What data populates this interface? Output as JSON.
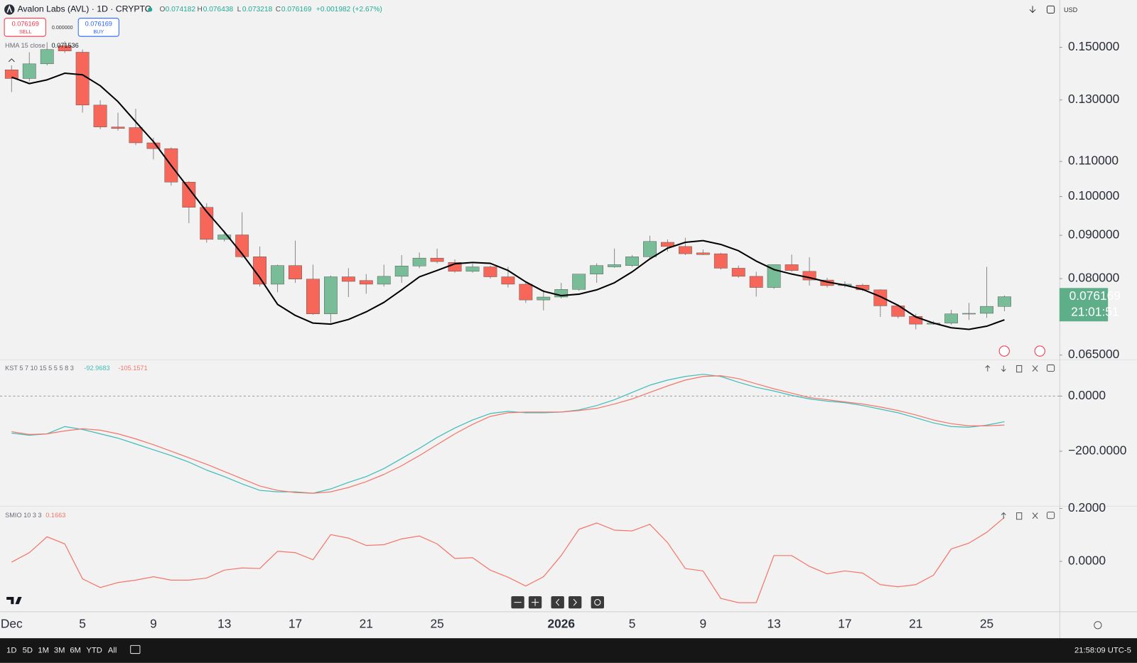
{
  "header": {
    "ohlc_letters": [
      "O",
      "H",
      "L",
      "C"
    ],
    "change": "+0.001982 (+2.67%)",
    "sell": "SELL",
    "buy": "BUY",
    "spread": "0.000000",
    "currency": "USD",
    "countdown": "21:01:51"
  },
  "toolbar": {
    "ranges": [
      "1D",
      "5D",
      "1M",
      "3M",
      "6M",
      "YTD",
      "All"
    ],
    "clock": "21:58:09 UTC-5"
  },
  "chart_data": [
    {
      "type": "candlestick",
      "title": "Avalon Labs (AVL) · 1D · CRYPTO",
      "log": true,
      "categories": [
        "Dec",
        null,
        null,
        null,
        "5",
        null,
        null,
        null,
        "9",
        null,
        null,
        null,
        "13",
        null,
        null,
        null,
        "17",
        null,
        null,
        null,
        "21",
        null,
        null,
        null,
        "25",
        null,
        null,
        null,
        null,
        null,
        null,
        "2026",
        null,
        null,
        null,
        "5",
        null,
        null,
        null,
        "9",
        null,
        null,
        null,
        "13",
        null,
        null,
        null,
        "17",
        null,
        null,
        null,
        "21",
        null,
        null,
        null,
        "25",
        null
      ],
      "open": [
        0.1411,
        0.1378,
        0.1434,
        0.1506,
        0.148,
        0.1282,
        0.1208,
        0.1206,
        0.1157,
        0.1139,
        0.104,
        0.0971,
        0.089,
        0.0901,
        0.0849,
        0.0788,
        0.0829,
        0.0799,
        0.0727,
        0.0804,
        0.0796,
        0.0788,
        0.0805,
        0.0828,
        0.0846,
        0.0836,
        0.0816,
        0.0826,
        0.0804,
        0.0788,
        0.0755,
        0.0761,
        0.0777,
        0.081,
        0.0826,
        0.0829,
        0.0849,
        0.0883,
        0.0873,
        0.0858,
        0.0856,
        0.0823,
        0.0805,
        0.0781,
        0.0831,
        0.0816,
        0.0797,
        0.0785,
        0.0786,
        0.0776,
        0.0743,
        0.0722,
        0.0707,
        0.0709,
        0.0727,
        0.0728,
        0.074182
      ],
      "high": [
        0.1428,
        0.148,
        0.1521,
        0.1524,
        0.1491,
        0.1299,
        0.1256,
        0.1269,
        0.1173,
        0.1143,
        0.1042,
        0.0982,
        0.0912,
        0.0958,
        0.0873,
        0.0831,
        0.0887,
        0.0831,
        0.0807,
        0.0823,
        0.081,
        0.0831,
        0.0853,
        0.0859,
        0.0868,
        0.0843,
        0.0833,
        0.0829,
        0.0826,
        0.0794,
        0.0776,
        0.0791,
        0.081,
        0.0834,
        0.0868,
        0.0853,
        0.0899,
        0.089,
        0.0894,
        0.0866,
        0.0858,
        0.0829,
        0.0815,
        0.0831,
        0.0854,
        0.0848,
        0.0802,
        0.0794,
        0.0789,
        0.0777,
        0.0746,
        0.0727,
        0.0713,
        0.0735,
        0.0749,
        0.0826,
        0.076438
      ],
      "low": [
        0.1328,
        0.1367,
        0.1428,
        0.1477,
        0.1256,
        0.1201,
        0.1196,
        0.115,
        0.1106,
        0.103,
        0.093,
        0.0882,
        0.0885,
        0.0846,
        0.0783,
        0.0771,
        0.0791,
        0.0725,
        0.0709,
        0.0761,
        0.0768,
        0.0783,
        0.0791,
        0.0823,
        0.0834,
        0.0813,
        0.0813,
        0.08,
        0.0781,
        0.0749,
        0.0734,
        0.0758,
        0.0774,
        0.0791,
        0.0824,
        0.0826,
        0.0844,
        0.0861,
        0.0853,
        0.0853,
        0.082,
        0.0802,
        0.0762,
        0.0778,
        0.0815,
        0.0785,
        0.0781,
        0.0781,
        0.0773,
        0.0721,
        0.0718,
        0.0697,
        0.0706,
        0.0706,
        0.0715,
        0.0719,
        0.073218
      ],
      "close": [
        0.1378,
        0.1434,
        0.1491,
        0.1485,
        0.1282,
        0.1208,
        0.1203,
        0.1157,
        0.1139,
        0.104,
        0.0971,
        0.089,
        0.0901,
        0.0849,
        0.0788,
        0.0829,
        0.0799,
        0.0727,
        0.0804,
        0.0794,
        0.0788,
        0.0805,
        0.0828,
        0.0846,
        0.0838,
        0.0816,
        0.0826,
        0.0804,
        0.0788,
        0.0755,
        0.0761,
        0.0777,
        0.081,
        0.0829,
        0.0831,
        0.0849,
        0.0885,
        0.0873,
        0.0856,
        0.0854,
        0.0823,
        0.0805,
        0.0781,
        0.0831,
        0.0818,
        0.0797,
        0.0785,
        0.0788,
        0.0776,
        0.0743,
        0.0722,
        0.0707,
        0.0709,
        0.0727,
        0.0728,
        0.0742,
        0.076169
      ],
      "up_color": "#79bc98",
      "down_color": "#f6675a",
      "series": [
        {
          "name": "HMA 15 close",
          "color": "#000000",
          "values": [
            0.1383,
            0.1359,
            0.1373,
            0.1398,
            0.1392,
            0.1351,
            0.1294,
            0.1225,
            0.1161,
            0.1088,
            0.1022,
            0.096,
            0.0908,
            0.0856,
            0.0802,
            0.0746,
            0.0724,
            0.0709,
            0.0707,
            0.0716,
            0.0731,
            0.075,
            0.0776,
            0.0804,
            0.0818,
            0.0833,
            0.0836,
            0.0834,
            0.0818,
            0.0793,
            0.0773,
            0.0764,
            0.0767,
            0.0776,
            0.0791,
            0.0815,
            0.0844,
            0.0869,
            0.0883,
            0.0887,
            0.0878,
            0.0863,
            0.0839,
            0.082,
            0.081,
            0.0802,
            0.0793,
            0.0786,
            0.0777,
            0.0762,
            0.0744,
            0.0721,
            0.0709,
            0.07,
            0.0697,
            0.0703,
            0.071536
          ]
        }
      ],
      "ylim": [
        0.0643,
        0.1705
      ],
      "yticks": [
        {
          "value": 0.15,
          "label": "0.150000"
        },
        {
          "value": 0.13,
          "label": "0.130000"
        },
        {
          "value": 0.11,
          "label": "0.110000"
        },
        {
          "value": 0.1,
          "label": "0.100000"
        },
        {
          "value": 0.09,
          "label": "0.090000"
        },
        {
          "value": 0.08,
          "label": "0.080000"
        },
        {
          "value": 0.065,
          "label": "0.065000"
        }
      ]
    },
    {
      "type": "line",
      "title": "KST 5 7 10 15 5 5 5 8 3",
      "zero_line": true,
      "series": [
        {
          "color": "#3fbdb8",
          "values": [
            -134.2,
            -142.1,
            -136.8,
            -110.5,
            -121.1,
            -136.8,
            -152.6,
            -173.7,
            -194.7,
            -215.8,
            -239.5,
            -268.4,
            -292.1,
            -318.4,
            -342.1,
            -347.4,
            -347.4,
            -352.6,
            -336.8,
            -313.2,
            -292.1,
            -263.2,
            -226.3,
            -189.5,
            -150,
            -115.8,
            -86.8,
            -63.2,
            -55.3,
            -60.5,
            -60.5,
            -57.9,
            -50,
            -34.2,
            -13.2,
            13.2,
            39.5,
            57.9,
            71.1,
            78.9,
            71.1,
            50,
            31.6,
            18.4,
            2.6,
            -10.5,
            -18.4,
            -23.7,
            -34.2,
            -47.4,
            -60.5,
            -78.9,
            -97.4,
            -110.5,
            -113.2,
            -105.3,
            -92.9683
          ]
        },
        {
          "color": "#f4766a",
          "values": [
            -128.9,
            -139.5,
            -136.8,
            -126.3,
            -118.4,
            -123.7,
            -136.8,
            -155.3,
            -176.3,
            -200,
            -223.7,
            -247.4,
            -273.7,
            -300,
            -326.3,
            -342.1,
            -350,
            -352.6,
            -347.4,
            -331.6,
            -310.5,
            -284.2,
            -252.6,
            -215.8,
            -176.3,
            -136.8,
            -102.6,
            -73.7,
            -60.5,
            -57.9,
            -57.9,
            -57.9,
            -52.6,
            -44.7,
            -28.9,
            -10.5,
            13.2,
            36.8,
            57.9,
            71.1,
            73.7,
            63.2,
            44.7,
            26.3,
            10.5,
            -5.3,
            -13.2,
            -21.1,
            -28.9,
            -39.5,
            -52.6,
            -68.4,
            -86.8,
            -100,
            -107.9,
            -107.9,
            -105.1571
          ]
        }
      ],
      "ylim": [
        -397,
        129
      ],
      "yticks": [
        {
          "value": 0,
          "label": "0.0000"
        },
        {
          "value": -200,
          "label": "−200.0000"
        }
      ]
    },
    {
      "type": "line",
      "title": "SMIO 10 3 3",
      "series": [
        {
          "color": "#f4766a",
          "values": [
            -0.003,
            0.033,
            0.093,
            0.066,
            -0.066,
            -0.099,
            -0.08,
            -0.071,
            -0.058,
            -0.071,
            -0.071,
            -0.063,
            -0.033,
            -0.025,
            -0.027,
            0.038,
            0.033,
            0.006,
            0.101,
            0.088,
            0.06,
            0.063,
            0.085,
            0.096,
            0.066,
            0.011,
            0.014,
            -0.033,
            -0.06,
            -0.093,
            -0.058,
            0.022,
            0.121,
            0.145,
            0.118,
            0.115,
            0.14,
            0.071,
            -0.027,
            -0.036,
            -0.14,
            -0.156,
            -0.156,
            0.022,
            0.022,
            -0.019,
            -0.047,
            -0.036,
            -0.044,
            -0.088,
            -0.096,
            -0.088,
            -0.052,
            0.047,
            0.069,
            0.11,
            0.1663
          ]
        }
      ],
      "ylim": [
        -0.189,
        0.2055
      ],
      "yticks": [
        {
          "value": 0.2,
          "label": "0.2000"
        },
        {
          "value": 0,
          "label": "0.0000"
        }
      ]
    }
  ]
}
